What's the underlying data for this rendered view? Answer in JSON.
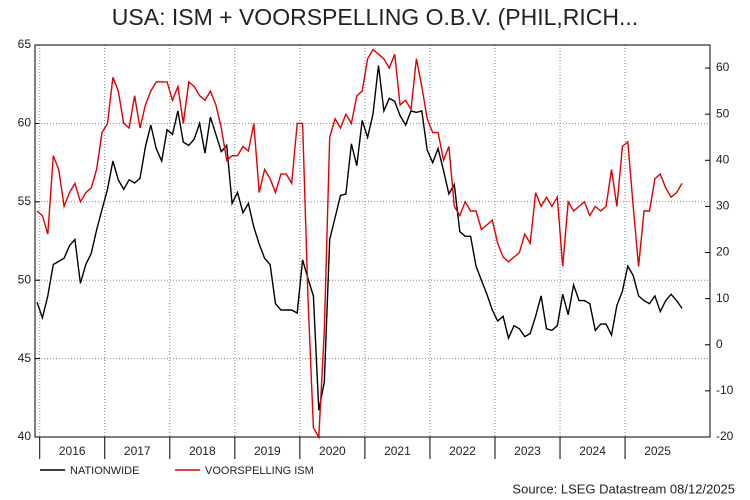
{
  "chart_data": {
    "type": "line",
    "title": "USA: ISM + VOORSPELLING O.B.V. (PHIL,RICH...",
    "source": "Source: LSEG Datastream 08/12/2025",
    "categories": [
      null,
      null,
      null,
      null,
      null,
      null,
      null,
      "2016",
      null,
      null,
      null,
      null,
      null,
      null,
      null,
      null,
      null,
      null,
      null,
      "2017",
      null,
      null,
      null,
      null,
      null,
      null,
      null,
      null,
      null,
      null,
      null,
      "2018",
      null,
      null,
      null,
      null,
      null,
      null,
      null,
      null,
      null,
      null,
      null,
      "2019",
      null,
      null,
      null,
      null,
      null,
      null,
      null,
      null,
      null,
      null,
      null,
      "2020",
      null,
      null,
      null,
      null,
      null,
      null,
      null,
      null,
      null,
      null,
      null,
      "2021",
      null,
      null,
      null,
      null,
      null,
      null,
      null,
      null,
      null,
      null,
      null,
      "2022",
      null,
      null,
      null,
      null,
      null,
      null,
      null,
      null,
      null,
      null,
      null,
      "2023",
      null,
      null,
      null,
      null,
      null,
      null,
      null,
      null,
      null,
      null,
      null,
      "2024",
      null,
      null,
      null,
      null,
      null,
      null,
      null,
      null,
      null,
      null,
      null,
      "2025",
      null,
      null,
      null,
      null
    ],
    "series": [
      {
        "name": "NATIONWIDE",
        "color": "#000000",
        "axis": "y",
        "values": [
          48.6,
          47.6,
          49,
          51,
          51.2,
          51.4,
          52.2,
          52.6,
          49.8,
          51,
          51.7,
          53.2,
          54.5,
          55.8,
          57.6,
          56.4,
          55.8,
          56.4,
          56.2,
          56.5,
          58.5,
          59.9,
          58.4,
          57.6,
          59.6,
          59.3,
          60.8,
          58.8,
          58.6,
          59,
          60,
          58.1,
          60.4,
          59.3,
          58.2,
          58.6,
          54.9,
          55.6,
          54.3,
          54.9,
          53.4,
          52.3,
          51.4,
          51,
          48.5,
          48.1,
          48.1,
          48.1,
          47.9,
          51.3,
          50.1,
          49,
          41.7,
          43.5,
          52.6,
          54,
          55.4,
          55.5,
          58.7,
          57.3,
          60.2,
          59.1,
          60.6,
          63.7,
          60.8,
          61.6,
          61.4,
          60.5,
          59.9,
          60.8,
          60.7,
          60.8,
          58.3,
          57.5,
          58.4,
          57,
          55.5,
          56.1,
          53.1,
          52.8,
          52.8,
          50.9,
          50,
          49.1,
          48.1,
          47.4,
          47.7,
          46.3,
          47.1,
          46.9,
          46.4,
          46.6,
          47.7,
          49,
          46.9,
          46.8,
          47.1,
          49.1,
          47.8,
          49.7,
          48.7,
          48.7,
          48.5,
          46.8,
          47.2,
          47.2,
          46.5,
          48.4,
          49.3,
          50.9,
          50.3,
          49,
          48.7,
          48.5,
          49,
          48,
          48.7,
          49.1,
          48.7,
          48.2
        ]
      },
      {
        "name": "VOORSPELLING ISM",
        "color": "#e00000",
        "axis": "y2",
        "values": [
          29,
          28,
          24,
          41,
          38,
          30,
          33,
          35,
          31,
          33,
          34,
          38,
          46,
          48,
          58,
          55,
          48,
          47,
          54,
          47,
          52,
          55,
          57,
          57,
          57,
          53,
          56,
          48,
          57,
          56,
          54,
          53,
          55,
          52,
          47,
          40,
          41,
          41,
          43,
          42,
          48,
          33,
          38,
          36,
          33,
          37,
          37,
          35,
          48,
          48,
          10,
          -18,
          -20,
          3,
          45,
          49,
          47,
          50,
          48,
          54,
          55,
          62,
          64,
          63,
          62,
          60,
          63,
          52,
          53,
          51,
          62,
          56,
          49,
          46,
          46,
          40,
          43,
          30,
          28,
          31,
          29,
          29,
          25,
          26,
          27,
          22,
          19,
          18,
          19,
          20,
          24,
          22,
          33,
          30,
          32,
          30,
          32,
          17,
          31,
          29,
          30,
          31,
          28,
          30,
          29,
          30,
          38,
          30,
          43,
          44,
          30,
          17,
          29,
          29,
          36,
          37,
          34,
          32,
          33,
          35
        ]
      }
    ],
    "ylim": [
      40,
      65
    ],
    "yticks": [
      40,
      45,
      50,
      55,
      60,
      65
    ],
    "y2lim": [
      -20,
      65
    ],
    "y2ticks": [
      -20,
      -10,
      0,
      10,
      20,
      30,
      40,
      50,
      60
    ],
    "grid": true
  }
}
